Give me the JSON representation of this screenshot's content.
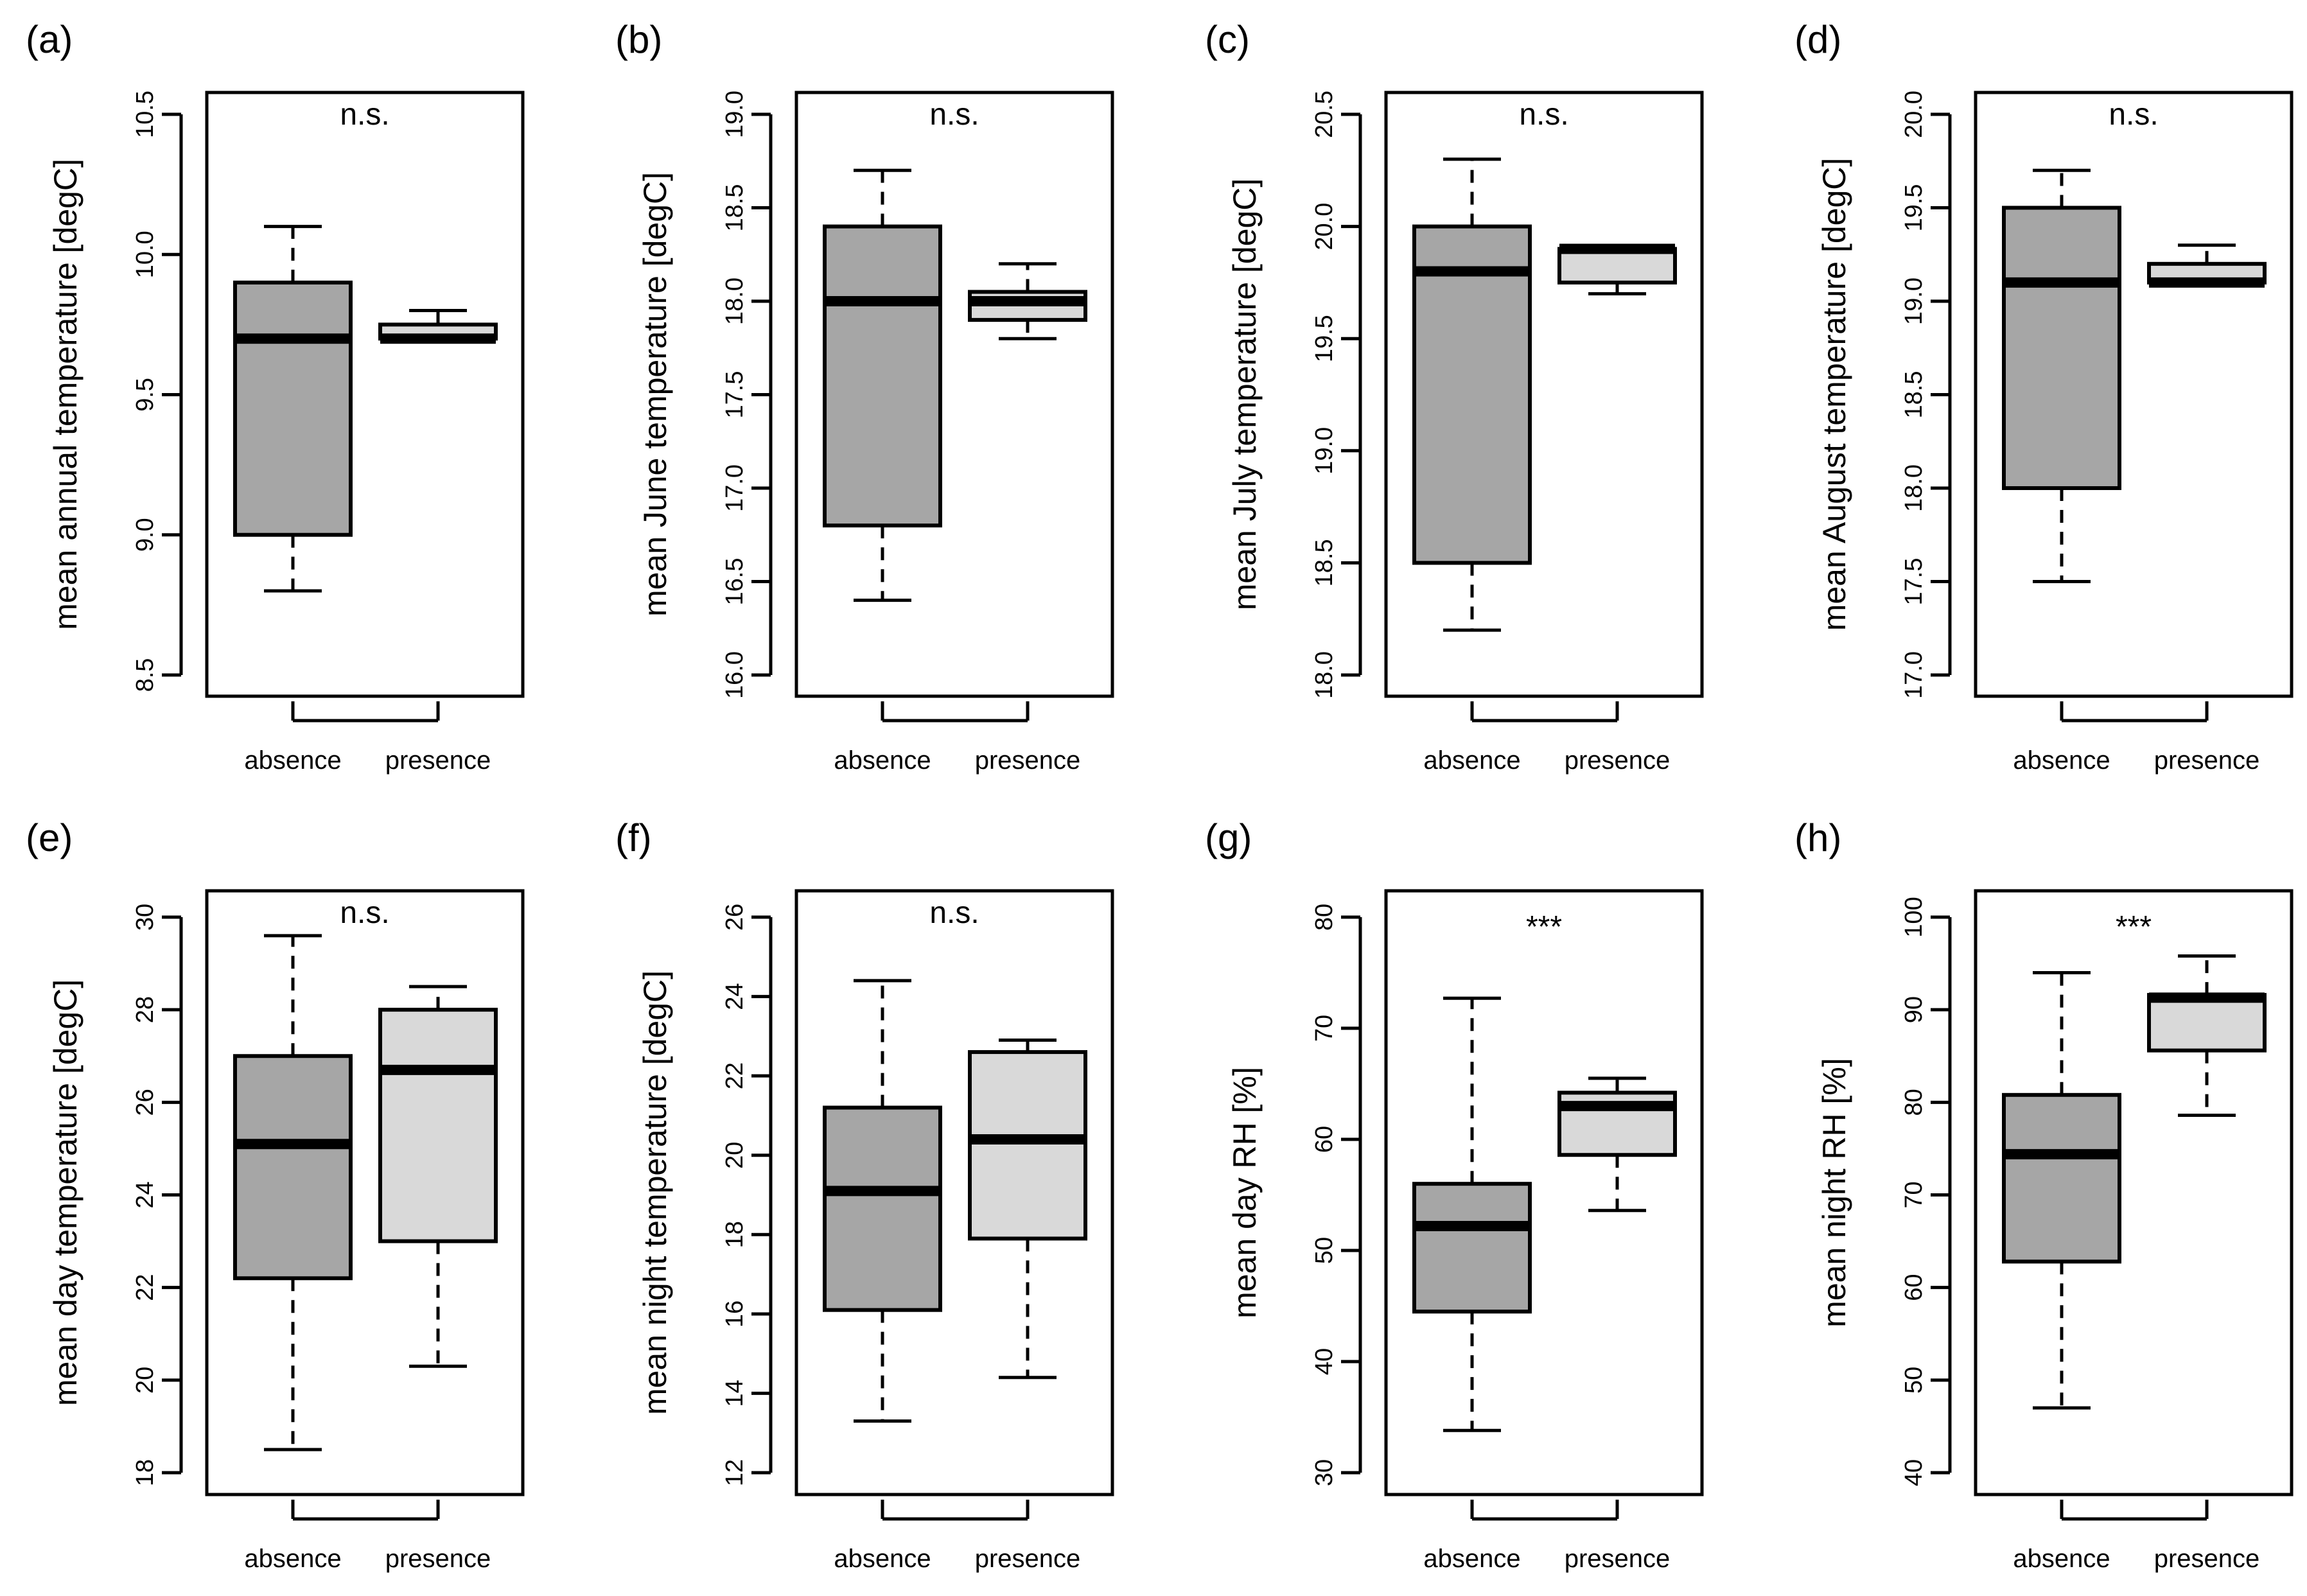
{
  "chart_data": [
    {
      "type": "box",
      "panel_label": "(a)",
      "ylabel": "mean annual temperature [degC]",
      "significance": "n.s.",
      "ylim": [
        8.5,
        10.5
      ],
      "yticks": [
        "8.5",
        "9.0",
        "9.5",
        "10.0",
        "10.5"
      ],
      "categories": [
        "absence",
        "presence"
      ],
      "boxes": [
        {
          "category": "absence",
          "min": 8.8,
          "q1": 9.0,
          "median": 9.7,
          "q3": 9.9,
          "max": 10.1,
          "fill": "#a6a6a6"
        },
        {
          "category": "presence",
          "min": 9.7,
          "q1": 9.7,
          "median": 9.7,
          "q3": 9.75,
          "max": 9.8,
          "fill": "#d9d9d9"
        }
      ]
    },
    {
      "type": "box",
      "panel_label": "(b)",
      "ylabel": "mean June temperature [degC]",
      "significance": "n.s.",
      "ylim": [
        16.0,
        19.0
      ],
      "yticks": [
        "16.0",
        "16.5",
        "17.0",
        "17.5",
        "18.0",
        "18.5",
        "19.0"
      ],
      "categories": [
        "absence",
        "presence"
      ],
      "boxes": [
        {
          "category": "absence",
          "min": 16.4,
          "q1": 16.8,
          "median": 18.0,
          "q3": 18.4,
          "max": 18.7,
          "fill": "#a6a6a6"
        },
        {
          "category": "presence",
          "min": 17.8,
          "q1": 17.9,
          "median": 18.0,
          "q3": 18.05,
          "max": 18.2,
          "fill": "#d9d9d9"
        }
      ]
    },
    {
      "type": "box",
      "panel_label": "(c)",
      "ylabel": "mean July temperature [degC]",
      "significance": "n.s.",
      "ylim": [
        18.0,
        20.5
      ],
      "yticks": [
        "18.0",
        "18.5",
        "19.0",
        "19.5",
        "20.0",
        "20.5"
      ],
      "categories": [
        "absence",
        "presence"
      ],
      "boxes": [
        {
          "category": "absence",
          "min": 18.2,
          "q1": 18.5,
          "median": 19.8,
          "q3": 20.0,
          "max": 20.3,
          "fill": "#a6a6a6"
        },
        {
          "category": "presence",
          "min": 19.7,
          "q1": 19.75,
          "median": 19.9,
          "q3": 19.9,
          "max": 19.9,
          "fill": "#d9d9d9"
        }
      ]
    },
    {
      "type": "box",
      "panel_label": "(d)",
      "ylabel": "mean August temperature [degC]",
      "significance": "n.s.",
      "ylim": [
        17.0,
        20.0
      ],
      "yticks": [
        "17.0",
        "17.5",
        "18.0",
        "18.5",
        "19.0",
        "19.5",
        "20.0"
      ],
      "categories": [
        "absence",
        "presence"
      ],
      "boxes": [
        {
          "category": "absence",
          "min": 17.5,
          "q1": 18.0,
          "median": 19.1,
          "q3": 19.5,
          "max": 19.7,
          "fill": "#a6a6a6"
        },
        {
          "category": "presence",
          "min": 19.1,
          "q1": 19.1,
          "median": 19.1,
          "q3": 19.2,
          "max": 19.3,
          "fill": "#d9d9d9"
        }
      ]
    },
    {
      "type": "box",
      "panel_label": "(e)",
      "ylabel": "mean day temperature [degC]",
      "significance": "n.s.",
      "ylim": [
        18,
        30
      ],
      "yticks": [
        "18",
        "20",
        "22",
        "24",
        "26",
        "28",
        "30"
      ],
      "categories": [
        "absence",
        "presence"
      ],
      "boxes": [
        {
          "category": "absence",
          "min": 18.5,
          "q1": 22.2,
          "median": 25.1,
          "q3": 27.0,
          "max": 29.6,
          "fill": "#a6a6a6"
        },
        {
          "category": "presence",
          "min": 20.3,
          "q1": 23.0,
          "median": 26.7,
          "q3": 28.0,
          "max": 28.5,
          "fill": "#d9d9d9"
        }
      ]
    },
    {
      "type": "box",
      "panel_label": "(f)",
      "ylabel": "mean night temperature [degC]",
      "significance": "n.s.",
      "ylim": [
        12,
        26
      ],
      "yticks": [
        "12",
        "14",
        "16",
        "18",
        "20",
        "22",
        "24",
        "26"
      ],
      "categories": [
        "absence",
        "presence"
      ],
      "boxes": [
        {
          "category": "absence",
          "min": 13.3,
          "q1": 16.1,
          "median": 19.1,
          "q3": 21.2,
          "max": 24.4,
          "fill": "#a6a6a6"
        },
        {
          "category": "presence",
          "min": 14.4,
          "q1": 17.9,
          "median": 20.4,
          "q3": 22.6,
          "max": 22.9,
          "fill": "#d9d9d9"
        }
      ]
    },
    {
      "type": "box",
      "panel_label": "(g)",
      "ylabel": "mean day RH [%]",
      "significance": "***",
      "ylim": [
        30,
        80
      ],
      "yticks": [
        "30",
        "40",
        "50",
        "60",
        "70",
        "80"
      ],
      "categories": [
        "absence",
        "presence"
      ],
      "boxes": [
        {
          "category": "absence",
          "min": 33.8,
          "q1": 44.5,
          "median": 52.2,
          "q3": 56.0,
          "max": 72.7,
          "fill": "#a6a6a6"
        },
        {
          "category": "presence",
          "min": 53.6,
          "q1": 58.6,
          "median": 63.0,
          "q3": 64.2,
          "max": 65.5,
          "fill": "#d9d9d9"
        }
      ]
    },
    {
      "type": "box",
      "panel_label": "(h)",
      "ylabel": "mean night RH [%]",
      "significance": "***",
      "ylim": [
        40,
        100
      ],
      "yticks": [
        "40",
        "50",
        "60",
        "70",
        "80",
        "90",
        "100"
      ],
      "categories": [
        "absence",
        "presence"
      ],
      "boxes": [
        {
          "category": "absence",
          "min": 47.0,
          "q1": 62.8,
          "median": 74.4,
          "q3": 80.8,
          "max": 94.0,
          "fill": "#a6a6a6"
        },
        {
          "category": "presence",
          "min": 78.6,
          "q1": 85.6,
          "median": 91.3,
          "q3": 91.6,
          "max": 95.8,
          "fill": "#d9d9d9"
        }
      ]
    }
  ]
}
